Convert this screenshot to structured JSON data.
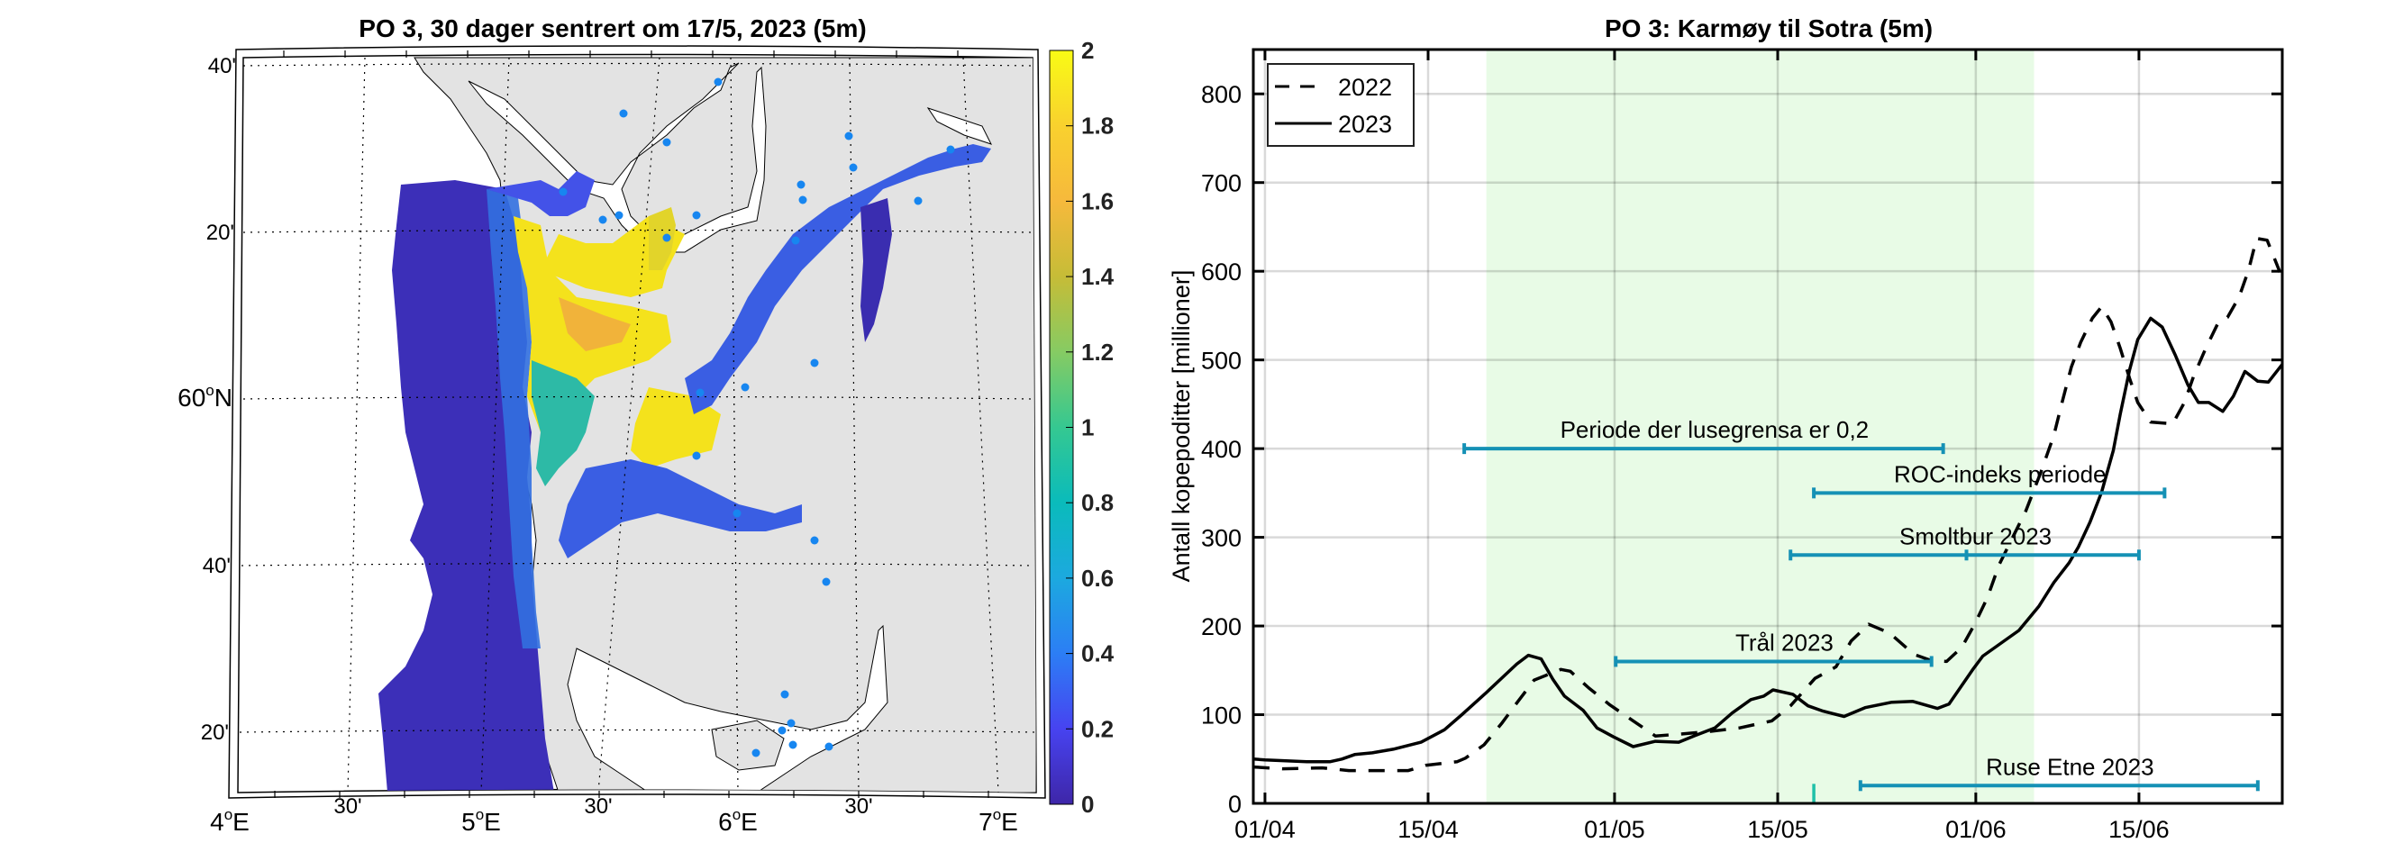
{
  "chart_data": [
    {
      "type": "heatmap",
      "title": "PO 3, 30 dager sentrert om 17/5, 2023 (5m)",
      "x_ticks": [
        {
          "label": "4",
          "suffix": "E",
          "deg": true
        },
        {
          "label": "30'",
          "deg": false
        },
        {
          "label": "5",
          "suffix": "E",
          "deg": true
        },
        {
          "label": "30'",
          "deg": false
        },
        {
          "label": "6",
          "suffix": "E",
          "deg": true
        },
        {
          "label": "30'",
          "deg": false
        },
        {
          "label": "7",
          "suffix": "E",
          "deg": true
        }
      ],
      "y_ticks_top": [
        {
          "label": "40'"
        },
        {
          "label": "20'"
        },
        {
          "label": "60",
          "suffix": "N",
          "deg": true
        },
        {
          "label": "40'"
        },
        {
          "label": "20'"
        }
      ],
      "colorbar": {
        "min": 0,
        "max": 2,
        "ticks": [
          "0",
          "0.2",
          "0.4",
          "0.6",
          "0.8",
          "1",
          "1.2",
          "1.4",
          "1.6",
          "1.8",
          "2"
        ],
        "colormap": [
          "#3e26a8",
          "#4743f0",
          "#2c7ef5",
          "#1ca9df",
          "#0abbbb",
          "#35c891",
          "#86cb63",
          "#c6bc37",
          "#f6b93c",
          "#f9d12e",
          "#f9fb15"
        ]
      },
      "land_color": "#e3e3e3",
      "station_color": "#1786f0"
    },
    {
      "type": "line",
      "title": "PO 3: Karmøy til Sotra (5m)",
      "ylabel": "Antall kopepoditter [millioner]",
      "xlabel": "",
      "x_unit": "days since 01/04",
      "xlim": [
        -1,
        87.3
      ],
      "ylim": [
        0,
        850
      ],
      "grid": true,
      "x_ticks": [
        {
          "day": 0,
          "label": "01/04"
        },
        {
          "day": 14,
          "label": "15/04"
        },
        {
          "day": 30,
          "label": "01/05"
        },
        {
          "day": 44,
          "label": "15/05"
        },
        {
          "day": 61,
          "label": "01/06"
        },
        {
          "day": 75,
          "label": "15/06"
        }
      ],
      "y_ticks": [
        0,
        100,
        200,
        300,
        400,
        500,
        600,
        700,
        800
      ],
      "legend": {
        "position": "top-left",
        "entries": [
          "2022",
          "2023"
        ]
      },
      "shaded_period": {
        "start_day": 19,
        "end_day": 66,
        "color": "#e8fbe6"
      },
      "series": [
        {
          "name": "2022",
          "style": "dashed",
          "color": "#000000",
          "points": [
            [
              -1,
              41
            ],
            [
              1.5,
              39
            ],
            [
              4.9,
              40
            ],
            [
              7.2,
              37
            ],
            [
              9.7,
              37
            ],
            [
              12.3,
              37
            ],
            [
              13.8,
              43
            ],
            [
              16.5,
              47
            ],
            [
              17.2,
              51
            ],
            [
              18.8,
              66
            ],
            [
              20.3,
              90
            ],
            [
              21.6,
              113
            ],
            [
              23.1,
              139
            ],
            [
              25.4,
              151
            ],
            [
              26.2,
              149
            ],
            [
              27.8,
              130
            ],
            [
              29.6,
              111
            ],
            [
              31.6,
              93
            ],
            [
              33.5,
              76
            ],
            [
              35.5,
              78
            ],
            [
              38.1,
              81
            ],
            [
              40.7,
              85
            ],
            [
              43.5,
              93
            ],
            [
              45.1,
              110
            ],
            [
              47.2,
              141
            ],
            [
              49.0,
              154
            ],
            [
              50.3,
              183
            ],
            [
              51.8,
              202
            ],
            [
              53.6,
              192
            ],
            [
              55.7,
              168
            ],
            [
              57.2,
              161
            ],
            [
              58.5,
              160
            ],
            [
              59.8,
              176
            ],
            [
              60.9,
              202
            ],
            [
              62.0,
              232
            ],
            [
              63.0,
              269
            ],
            [
              65.3,
              330
            ],
            [
              66.6,
              374
            ],
            [
              67.7,
              415
            ],
            [
              68.4,
              452
            ],
            [
              69.2,
              492
            ],
            [
              70.0,
              520
            ],
            [
              71.0,
              547
            ],
            [
              71.8,
              560
            ],
            [
              72.6,
              543
            ],
            [
              73.4,
              513
            ],
            [
              74.2,
              479
            ],
            [
              74.9,
              452
            ],
            [
              76.0,
              430
            ],
            [
              77.9,
              428
            ],
            [
              78.9,
              452
            ],
            [
              79.7,
              482
            ],
            [
              80.7,
              512
            ],
            [
              81.8,
              542
            ],
            [
              82.6,
              548
            ],
            [
              83.6,
              571
            ],
            [
              84.4,
              601
            ],
            [
              85.1,
              637
            ],
            [
              86.0,
              635
            ],
            [
              87.1,
              599
            ]
          ]
        },
        {
          "name": "2023",
          "style": "solid",
          "color": "#000000",
          "points": [
            [
              -1,
              50
            ],
            [
              0,
              49
            ],
            [
              3.6,
              47
            ],
            [
              5.6,
              47
            ],
            [
              6.6,
              50
            ],
            [
              7.7,
              55
            ],
            [
              9.2,
              57
            ],
            [
              11.0,
              61
            ],
            [
              13.4,
              69
            ],
            [
              15.4,
              83
            ],
            [
              16.9,
              100
            ],
            [
              19,
              125
            ],
            [
              21.6,
              157
            ],
            [
              22.6,
              167
            ],
            [
              23.7,
              163
            ],
            [
              24.7,
              140
            ],
            [
              25.7,
              121
            ],
            [
              27.3,
              105
            ],
            [
              28.5,
              85
            ],
            [
              29.9,
              75
            ],
            [
              31.6,
              64
            ],
            [
              33.5,
              70
            ],
            [
              35.5,
              69
            ],
            [
              36.8,
              76
            ],
            [
              38.6,
              85
            ],
            [
              40.1,
              102
            ],
            [
              41.7,
              117
            ],
            [
              42.8,
              121
            ],
            [
              43.6,
              128
            ],
            [
              45.3,
              123
            ],
            [
              46.6,
              110
            ],
            [
              47.9,
              104
            ],
            [
              49.7,
              98
            ],
            [
              51.5,
              108
            ],
            [
              53.8,
              114
            ],
            [
              55.6,
              115
            ],
            [
              57.7,
              107
            ],
            [
              58.7,
              112
            ],
            [
              60.8,
              152
            ],
            [
              61.6,
              166
            ],
            [
              64.7,
              195
            ],
            [
              66.4,
              222
            ],
            [
              67.7,
              249
            ],
            [
              69.0,
              271
            ],
            [
              69.8,
              289
            ],
            [
              70.8,
              317
            ],
            [
              71.8,
              351
            ],
            [
              72.8,
              398
            ],
            [
              73.4,
              439
            ],
            [
              74.2,
              489
            ],
            [
              74.9,
              523
            ],
            [
              76.0,
              547
            ],
            [
              77.0,
              537
            ],
            [
              78.1,
              506
            ],
            [
              79.2,
              472
            ],
            [
              80.1,
              452
            ],
            [
              81.0,
              452
            ],
            [
              82.2,
              442
            ],
            [
              83.1,
              459
            ],
            [
              84.1,
              487
            ],
            [
              85.2,
              476
            ],
            [
              86.1,
              475
            ],
            [
              87.3,
              495
            ]
          ]
        }
      ],
      "intervals": [
        {
          "label": "Periode der lusegrensa er 0,2",
          "start_day": 17.1,
          "end_day": 58.2,
          "y": 400,
          "mid_day": null
        },
        {
          "label": "ROC-indeks periode",
          "start_day": 47.1,
          "end_day": 77.2,
          "y": 350,
          "mid_day": null
        },
        {
          "label": "Smoltbur 2023",
          "start_day": 45.1,
          "end_day": 75.0,
          "y": 280,
          "mid_day": 60.2
        },
        {
          "label": "Trål 2023",
          "start_day": 30.1,
          "end_day": 57.2,
          "y": 160,
          "mid_day": null
        },
        {
          "label": "Ruse Etne 2023",
          "start_day": 51.1,
          "end_day": 85.2,
          "y": 20,
          "mid_day": null
        }
      ],
      "marker": {
        "day": 47.1,
        "y_from": 0,
        "y_to": 22,
        "color": "#1fc1a8"
      },
      "interval_color": "#1591b5"
    }
  ]
}
